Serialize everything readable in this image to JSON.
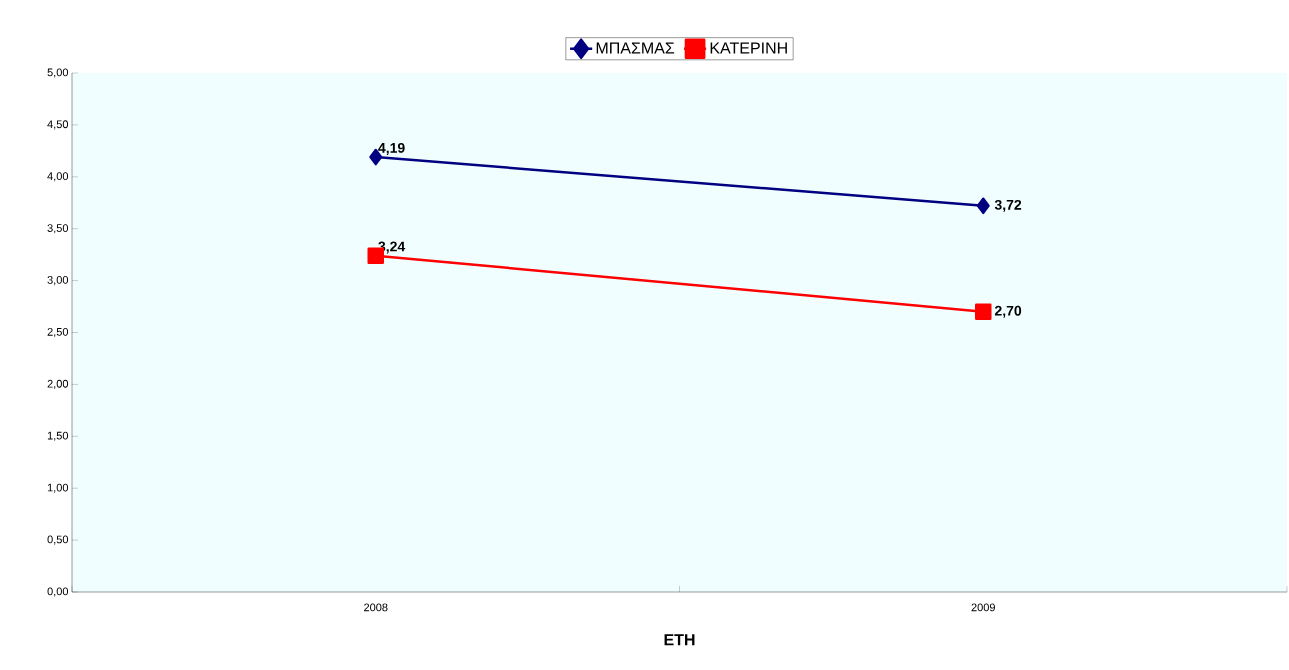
{
  "chart_data": {
    "type": "line",
    "xlabel": "ΕΤΗ",
    "categories": [
      "2008",
      "2009"
    ],
    "series": [
      {
        "name": "ΜΠΑΣΜΑΣ",
        "color": "#000080",
        "marker": "diamond",
        "values": [
          4.19,
          3.72
        ],
        "value_labels": [
          "4,19",
          "3,72"
        ]
      },
      {
        "name": "ΚΑΤΕΡΙΝΗ",
        "color": "#ff0000",
        "marker": "square",
        "values": [
          3.24,
          2.7
        ],
        "value_labels": [
          "3,24",
          "2,70"
        ]
      }
    ],
    "ylim": [
      0,
      5
    ],
    "yticks": [
      {
        "value": 0,
        "label": "0,00"
      },
      {
        "value": 0.5,
        "label": "0,50"
      },
      {
        "value": 1,
        "label": "1,00"
      },
      {
        "value": 1.5,
        "label": "1,50"
      },
      {
        "value": 2,
        "label": "2,00"
      },
      {
        "value": 2.5,
        "label": "2,50"
      },
      {
        "value": 3,
        "label": "3,00"
      },
      {
        "value": 3.5,
        "label": "3,50"
      },
      {
        "value": 4,
        "label": "4,00"
      },
      {
        "value": 4.5,
        "label": "4,50"
      },
      {
        "value": 5,
        "label": "5,00"
      }
    ],
    "grid": false,
    "legend": "top",
    "line_style": "solid"
  }
}
